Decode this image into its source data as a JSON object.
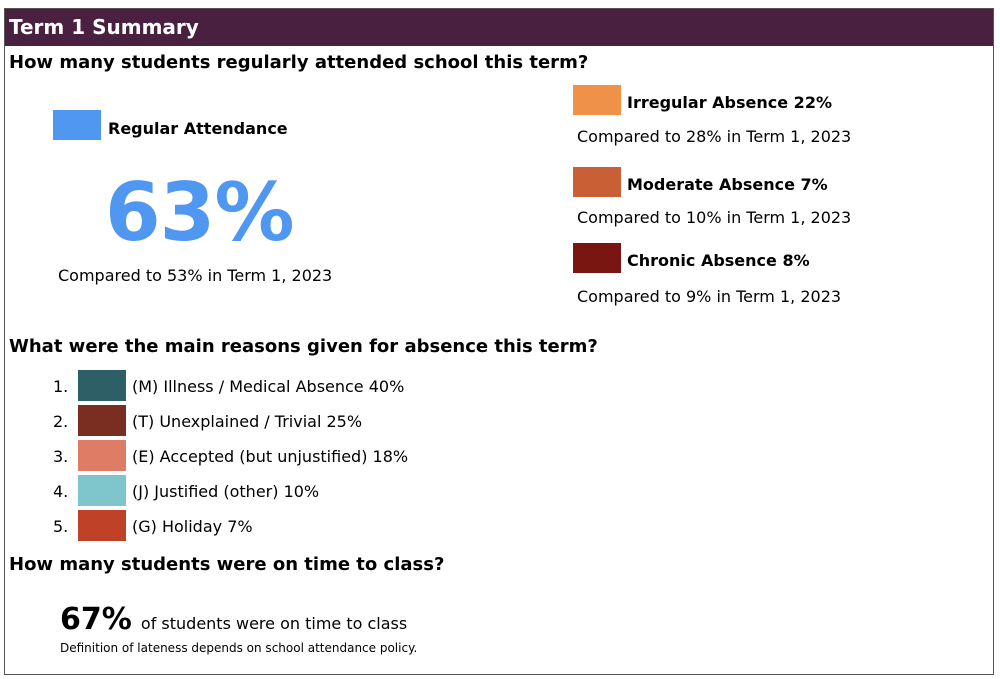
{
  "header": {
    "title": "Term 1 Summary",
    "color": "#4a2040"
  },
  "attendance": {
    "question": "How many students regularly attended school this term?",
    "regular": {
      "label": "Regular Attendance",
      "percent": "63%",
      "comparison": "Compared to 53% in Term 1, 2023",
      "color": "#4f97f0"
    },
    "irregular": {
      "label": "Irregular Absence 22%",
      "comparison": "Compared to 28% in Term 1, 2023",
      "color": "#f0914a"
    },
    "moderate": {
      "label": "Moderate Absence 7%",
      "comparison": "Compared to 10% in Term 1, 2023",
      "color": "#c85f35"
    },
    "chronic": {
      "label": "Chronic Absence 8%",
      "comparison": "Compared to 9% in Term 1, 2023",
      "color": "#7a1612"
    }
  },
  "reasons": {
    "question": "What were the main reasons given for absence this term?",
    "items": [
      {
        "num": "1.",
        "label": "(M) Illness / Medical Absence 40%",
        "color": "#2e5f66"
      },
      {
        "num": "2.",
        "label": "(T) Unexplained / Trivial 25%",
        "color": "#7a2e22"
      },
      {
        "num": "3.",
        "label": "(E) Accepted (but unjustified) 18%",
        "color": "#df7c66"
      },
      {
        "num": "4.",
        "label": "(J) Justified (other) 10%",
        "color": "#7ec6cc"
      },
      {
        "num": "5.",
        "label": "(G) Holiday 7%",
        "color": "#bf4128"
      }
    ]
  },
  "ontime": {
    "question": "How many students were on time to class?",
    "percent": "67%",
    "text": "of students were on time to class",
    "note": "Definition of lateness depends on school attendance policy."
  }
}
